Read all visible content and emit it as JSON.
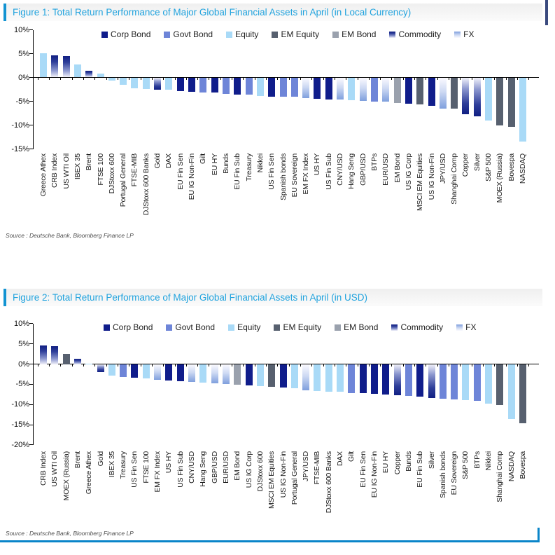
{
  "page": {
    "accent_blue": "#21a3de",
    "frame_blue": "#0a85c9"
  },
  "legend": [
    {
      "label": "Corp Bond",
      "key": "corp",
      "color": "#101d8b"
    },
    {
      "label": "Govt Bond",
      "key": "govt",
      "color": "#6e85d8"
    },
    {
      "label": "Equity",
      "key": "equity",
      "color": "#a9daf7"
    },
    {
      "label": "EM Equity",
      "key": "emequity",
      "color": "#57606f"
    },
    {
      "label": "EM Bond",
      "key": "embond",
      "color": "#9aa1ad"
    },
    {
      "label": "Commodity",
      "key": "commodity",
      "color": "#111f83"
    },
    {
      "label": "FX",
      "key": "fx",
      "color": "#7f9fdd"
    }
  ],
  "chart_data": [
    {
      "type": "bar",
      "title": "Figure 1: Total Return Performance of Major Global Financial Assets in April (in Local Currency)",
      "source": "Source : Deutsche Bank, Bloomberg Finance LP",
      "ylabel": "",
      "ylim": [
        -15,
        10
      ],
      "ytick_labels": [
        "10%",
        "5%",
        "0%",
        "-5%",
        "-10%",
        "-15%"
      ],
      "legend_position": "top",
      "grid": false,
      "unit": "%",
      "categories": [
        "Greece Athex",
        "CRB Index",
        "US WTI Oil",
        "IBEX 35",
        "Brent",
        "FTSE 100",
        "DJStoxx 600",
        "Portugal General",
        "FTSE-MIB",
        "DJStoxx 600 Banks",
        "Gold",
        "DAX",
        "EU Fin Sen",
        "EU IG Non-Fin",
        "Gilt",
        "EU HY",
        "Bunds",
        "EU Fin Sub",
        "Treasury",
        "Nikkei",
        "US Fin Sen",
        "Spanish bonds",
        "EU Sovereign",
        "EM FX Index",
        "US HY",
        "US Fin Sub",
        "CNY/USD",
        "Hang Seng",
        "GBP/USD",
        "BTPs",
        "EUR/USD",
        "EM Bond",
        "US IG Corp",
        "MSCI EM Equities",
        "US IG Non-Fin",
        "JPY/USD",
        "Shanghai Comp",
        "Copper",
        "Silver",
        "S&P 500",
        "MOEX (Russia)",
        "Bovespa",
        "NASDAQ"
      ],
      "values": [
        5.1,
        4.6,
        4.5,
        2.7,
        1.4,
        0.8,
        -0.6,
        -1.5,
        -2.3,
        -2.4,
        -2.5,
        -2.6,
        -2.9,
        -3.0,
        -3.1,
        -3.2,
        -3.4,
        -3.6,
        -3.6,
        -3.9,
        -4.0,
        -4.0,
        -4.1,
        -4.3,
        -4.5,
        -4.6,
        -4.6,
        -4.8,
        -4.9,
        -5.0,
        -5.1,
        -5.4,
        -5.5,
        -5.7,
        -5.9,
        -6.5,
        -6.6,
        -7.7,
        -8.2,
        -9.0,
        -10.0,
        -10.4,
        -13.5
      ],
      "asset_class": [
        "equity",
        "commodity",
        "commodity",
        "equity",
        "commodity",
        "equity",
        "equity",
        "equity",
        "equity",
        "equity",
        "commodity",
        "equity",
        "corp",
        "corp",
        "govt",
        "corp",
        "govt",
        "corp",
        "govt",
        "equity",
        "corp",
        "govt",
        "govt",
        "fx",
        "corp",
        "corp",
        "fx",
        "equity",
        "fx",
        "govt",
        "fx",
        "embond",
        "corp",
        "emequity",
        "corp",
        "fx",
        "emequity",
        "commodity",
        "commodity",
        "equity",
        "emequity",
        "emequity",
        "equity"
      ]
    },
    {
      "type": "bar",
      "title": "Figure 2: Total Return Performance of Major Global Financial Assets in April (in USD)",
      "source": "Source : Deutsche Bank, Bloomberg Finance LP",
      "ylabel": "",
      "ylim": [
        -20,
        10
      ],
      "ytick_labels": [
        "10%",
        "5%",
        "0%",
        "-5%",
        "-10%",
        "-15%",
        "-20%"
      ],
      "legend_position": "top",
      "grid": false,
      "unit": "%",
      "categories": [
        "CRB Index",
        "US WTI Oil",
        "MOEX (Russia)",
        "Brent",
        "Greece Athex",
        "Gold",
        "IBEX 35",
        "Treasury",
        "US Fin Sen",
        "FTSE 100",
        "EM FX Index",
        "US HY",
        "US Fin Sub",
        "CNY/USD",
        "Hang Seng",
        "GBP/USD",
        "EUR/USD",
        "EM Bond",
        "US IG Corp",
        "DJStoxx 600",
        "MSCI EM Equities",
        "US IG Non-Fin",
        "Portugal General",
        "JPY/USD",
        "FTSE-MIB",
        "DJStoxx 600 Banks",
        "DAX",
        "Gilt",
        "EU Fin Sen",
        "EU IG Non-Fin",
        "EU HY",
        "Copper",
        "Bunds",
        "EU Fin Sub",
        "Silver",
        "Spanish bonds",
        "EU Sovereign",
        "S&P 500",
        "BTPs",
        "Nikkei",
        "Shanghai Comp",
        "NASDAQ",
        "Bovespa"
      ],
      "values": [
        4.6,
        4.4,
        2.5,
        1.3,
        0.1,
        -2.0,
        -2.8,
        -3.2,
        -3.4,
        -3.5,
        -3.9,
        -4.0,
        -4.2,
        -4.4,
        -4.5,
        -4.7,
        -4.9,
        -5.1,
        -5.2,
        -5.5,
        -5.7,
        -5.8,
        -5.9,
        -6.5,
        -6.7,
        -6.8,
        -6.9,
        -7.2,
        -7.2,
        -7.4,
        -7.5,
        -7.7,
        -7.8,
        -8.0,
        -8.4,
        -8.5,
        -8.7,
        -9.0,
        -9.1,
        -9.7,
        -10.1,
        -13.6,
        -14.6
      ],
      "asset_class": [
        "commodity",
        "commodity",
        "emequity",
        "commodity",
        "equity",
        "commodity",
        "equity",
        "govt",
        "corp",
        "equity",
        "fx",
        "corp",
        "corp",
        "fx",
        "equity",
        "fx",
        "fx",
        "embond",
        "corp",
        "equity",
        "emequity",
        "corp",
        "equity",
        "fx",
        "equity",
        "equity",
        "equity",
        "govt",
        "corp",
        "corp",
        "corp",
        "commodity",
        "govt",
        "corp",
        "commodity",
        "govt",
        "govt",
        "equity",
        "govt",
        "equity",
        "emequity",
        "equity",
        "emequity"
      ]
    }
  ]
}
